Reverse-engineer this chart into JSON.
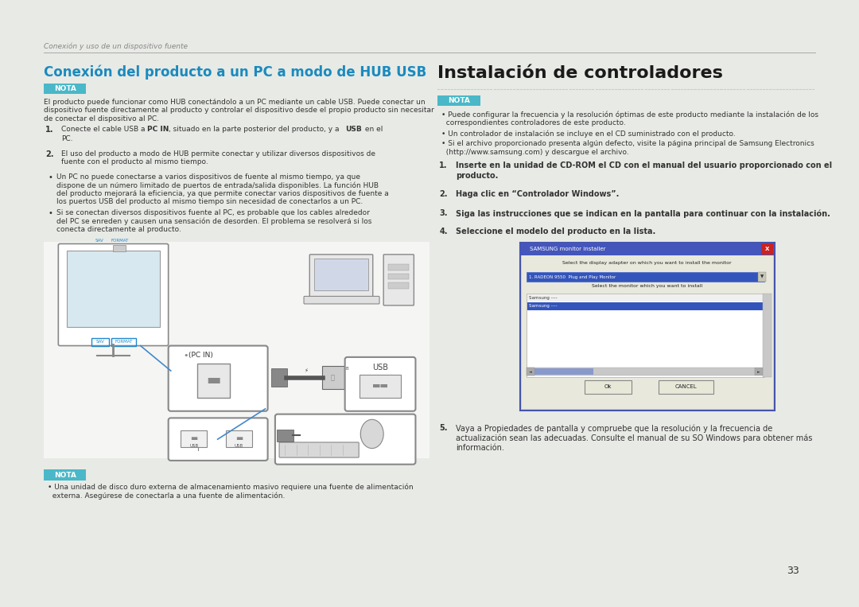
{
  "bg_color": "#e8eae5",
  "page_bg": "#ffffff",
  "header_text": "Conexión y uso de un dispositivo fuente",
  "header_color": "#888888",
  "divider_color": "#aaaaaa",
  "page_number": "33",
  "left_title": "Conexión del producto a un PC a modo de HUB USB",
  "left_title_color": "#1a8abf",
  "right_title": "Instalación de controladores",
  "right_title_color": "#1a1a1a",
  "nota_bg": "#4ab8c8",
  "nota_text": "NOTA",
  "nota_text_color": "#ffffff",
  "body_color": "#333333",
  "left_nota_body_lines": [
    "El producto puede funcionar como HUB conectándolo a un PC mediante un cable USB. Puede conectar un",
    "dispositivo fuente directamente al producto y controlar el dispositivo desde el propio producto sin necesitar",
    "de conectar el dispositivo al PC."
  ],
  "left_step1_parts": [
    {
      "text": "Conecte el cable USB a ",
      "bold": false
    },
    {
      "text": "PC IN",
      "bold": true
    },
    {
      "text": ", situado en la parte posterior del producto, y a ",
      "bold": false
    },
    {
      "text": "USB",
      "bold": true
    },
    {
      "text": " en el",
      "bold": false
    }
  ],
  "left_step1_line2": "PC.",
  "left_step2_lines": [
    "El uso del producto a modo de HUB permite conectar y utilizar diversos dispositivos de",
    "fuente con el producto al mismo tiempo."
  ],
  "left_bullet1_lines": [
    "Un PC no puede conectarse a varios dispositivos de fuente al mismo tiempo, ya que",
    "dispone de un número limitado de puertos de entrada/salida disponibles. La función HUB",
    "del producto mejorará la eficiencia, ya que permite conectar varios dispositivos de fuente a",
    "los puertos USB del producto al mismo tiempo sin necesidad de conectarlos a un PC."
  ],
  "left_bullet2_lines": [
    "Si se conectan diversos dispositivos fuente al PC, es probable que los cables alrededor",
    "del PC se enreden y causen una sensación de desorden. El problema se resolverá si los",
    "conecta directamente al producto."
  ],
  "left_nota2_lines": [
    "Una unidad de disco duro externa de almacenamiento masivo requiere una fuente de alimentación",
    "externa. Asegúrese de conectarla a una fuente de alimentación."
  ],
  "right_nota_bullet1_lines": [
    "Puede configurar la frecuencia y la resolución óptimas de este producto mediante la instalación de los",
    "correspondientes controladores de este producto."
  ],
  "right_nota_bullet2_lines": [
    "Un controlador de instalación se incluye en el CD suministrado con el producto."
  ],
  "right_nota_bullet3_lines": [
    "Si el archivo proporcionado presenta algún defecto, visite la página principal de Samsung Electronics",
    "(http://www.samsung.com) y descargue el archivo."
  ],
  "right_step1_lines": [
    "Inserte en la unidad de CD-ROM el CD con el manual del usuario proporcionado con el",
    "producto."
  ],
  "right_step2": "Haga clic en “Controlador Windows”.",
  "right_step3": "Siga las instrucciones que se indican en la pantalla para continuar con la instalación.",
  "right_step4": "Seleccione el modelo del producto en la lista.",
  "right_step5_lines": [
    "Vaya a Propiedades de pantalla y compruebe que la resolución y la frecuencia de",
    "actualización sean las adecuadas. Consulte el manual de su SO Windows para obtener más",
    "información."
  ],
  "ss_title": "SAMSUNG monitor installer",
  "ss_line1": "Select the display adapter on which you want to install the monitor",
  "ss_dropdown": "1. RADEON 9550  Plug and Play Monitor",
  "ss_line2": "Select the monitor which you want to install",
  "ss_item1": "Samsung ----",
  "ss_item2": "Samsung ----",
  "ss_ok": "Ok",
  "ss_cancel": "CANCEL",
  "dotted_line_color": "#cccccc"
}
